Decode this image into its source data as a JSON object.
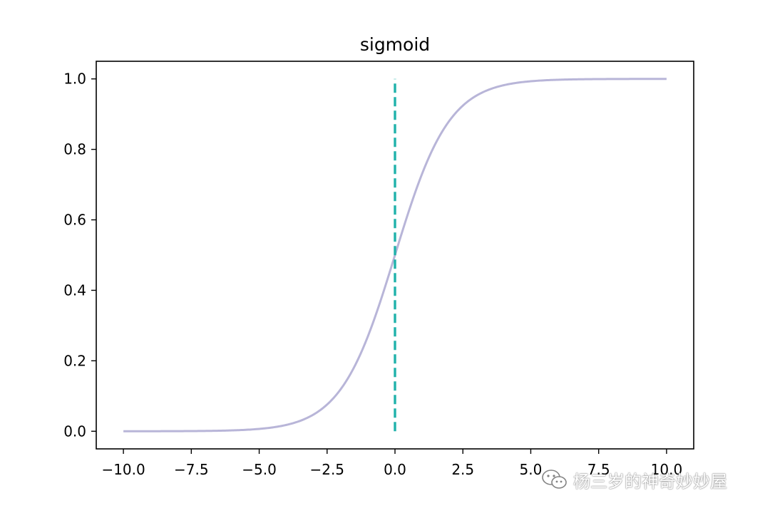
{
  "chart_data": {
    "type": "line",
    "title": "sigmoid",
    "xlabel": "",
    "ylabel": "",
    "xlim": [
      -11.0,
      11.0
    ],
    "ylim": [
      -0.05,
      1.05
    ],
    "x_ticks": [
      -10.0,
      -7.5,
      -5.0,
      -2.5,
      0.0,
      2.5,
      5.0,
      7.5,
      10.0
    ],
    "x_tick_labels": [
      "−10.0",
      "−7.5",
      "−5.0",
      "−2.5",
      "0.0",
      "2.5",
      "5.0",
      "7.5",
      "10.0"
    ],
    "y_ticks": [
      0.0,
      0.2,
      0.4,
      0.6,
      0.8,
      1.0
    ],
    "y_tick_labels": [
      "0.0",
      "0.2",
      "0.4",
      "0.6",
      "0.8",
      "1.0"
    ],
    "grid": false,
    "series": [
      {
        "function": "sigmoid",
        "color": "#b8b5d8",
        "style": "solid",
        "x": [
          -10.0,
          -9.0,
          -8.0,
          -7.0,
          -6.0,
          -5.0,
          -4.5,
          -4.0,
          -3.5,
          -3.0,
          -2.5,
          -2.0,
          -1.5,
          -1.0,
          -0.5,
          0.0,
          0.5,
          1.0,
          1.5,
          2.0,
          2.5,
          3.0,
          3.5,
          4.0,
          4.5,
          5.0,
          6.0,
          7.0,
          8.0,
          9.0,
          10.0
        ],
        "y": [
          0.0,
          0.0001,
          0.0003,
          0.0009,
          0.0025,
          0.0067,
          0.011,
          0.018,
          0.0293,
          0.0474,
          0.0759,
          0.1192,
          0.1824,
          0.2689,
          0.3775,
          0.5,
          0.6225,
          0.7311,
          0.8176,
          0.8808,
          0.9241,
          0.9526,
          0.9707,
          0.982,
          0.989,
          0.9933,
          0.9975,
          0.9991,
          0.9997,
          0.9999,
          1.0
        ]
      },
      {
        "color": "#20b2aa",
        "style": "dashed",
        "x": [
          0.0,
          0.0
        ],
        "y": [
          0.0,
          1.0
        ]
      }
    ]
  },
  "watermark": {
    "text": "杨三岁的神奇妙妙屋",
    "icon": "wechat-icon"
  }
}
